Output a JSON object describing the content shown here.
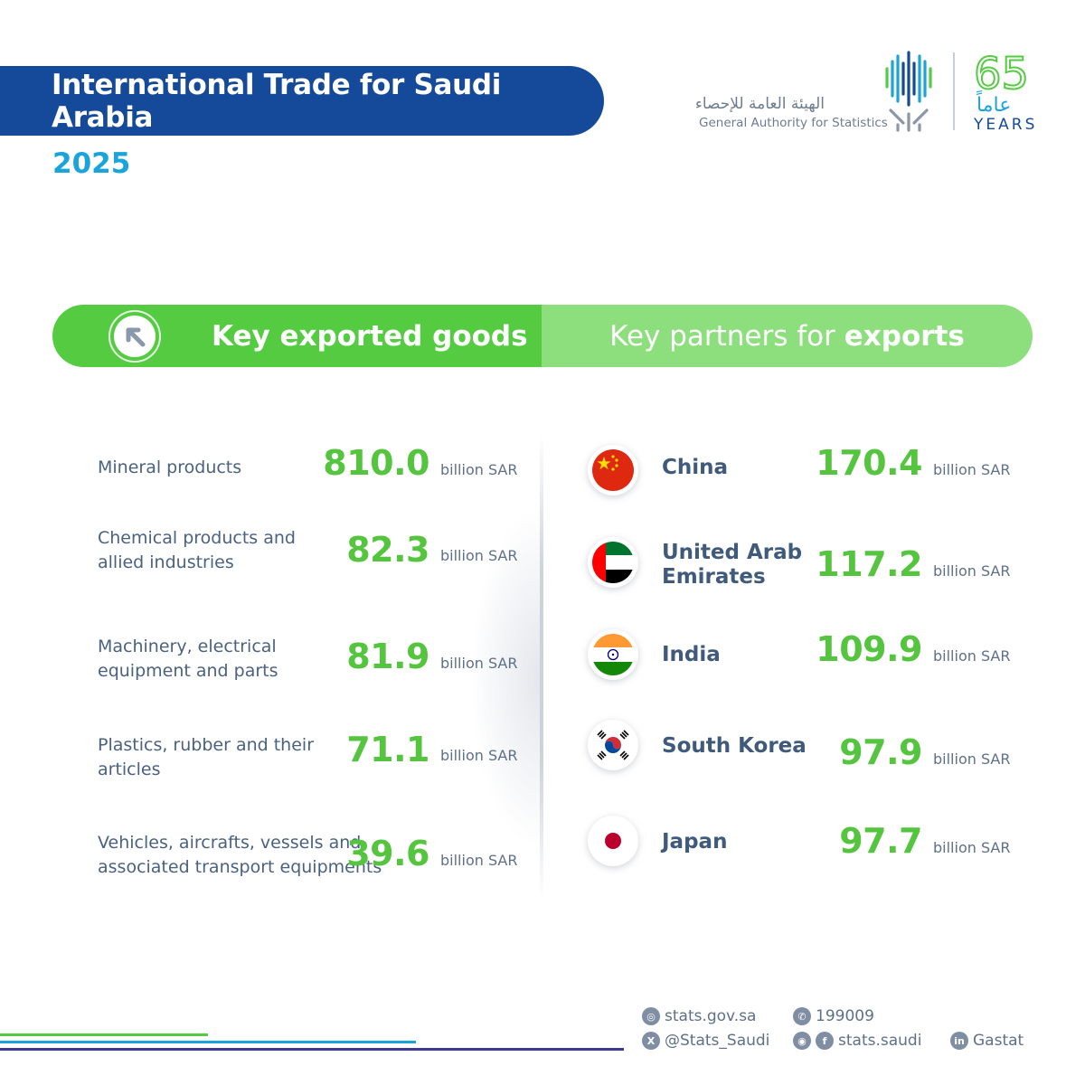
{
  "header": {
    "title": "International Trade for Saudi Arabia",
    "year": "2025"
  },
  "logo": {
    "arabic_name": "الهيئة العامة للإحصاء",
    "english_name": "General Authority for Statistics",
    "anniversary_number": "65",
    "anniversary_arabic": "عاماً",
    "anniversary_english": "YEARS",
    "colors": {
      "navy": "#154a9a",
      "cyan": "#1aa4dc",
      "green": "#55cb42"
    }
  },
  "band": {
    "left_label": "Key exported goods",
    "right_label_prefix": "Key partners for ",
    "right_label_bold": "exports",
    "arrow_icon": "arrow-up-left-icon"
  },
  "goods": [
    {
      "name_line1": "Mineral products",
      "name_line2": "",
      "value": "810.0",
      "unit": "billion SAR"
    },
    {
      "name_line1": "Chemical products and",
      "name_line2": "allied industries",
      "value": "82.3",
      "unit": "billion SAR"
    },
    {
      "name_line1": "Machinery, electrical",
      "name_line2": "equipment and parts",
      "value": "81.9",
      "unit": "billion SAR"
    },
    {
      "name_line1": "Plastics, rubber and their",
      "name_line2": "articles",
      "value": "71.1",
      "unit": "billion SAR"
    },
    {
      "name_line1": "Vehicles, aircrafts, vessels and",
      "name_line2": "associated transport equipments",
      "value": "39.6",
      "unit": "billion SAR"
    }
  ],
  "partners": [
    {
      "name_line1": "China",
      "name_line2": "",
      "value": "170.4",
      "unit": "billion SAR",
      "flag": "china-flag-icon"
    },
    {
      "name_line1": "United Arab",
      "name_line2": "Emirates",
      "value": "117.2",
      "unit": "billion SAR",
      "flag": "uae-flag-icon"
    },
    {
      "name_line1": "India",
      "name_line2": "",
      "value": "109.9",
      "unit": "billion SAR",
      "flag": "india-flag-icon"
    },
    {
      "name_line1": "South Korea",
      "name_line2": "",
      "value": "97.9",
      "unit": "billion SAR",
      "flag": "south-korea-flag-icon"
    },
    {
      "name_line1": "Japan",
      "name_line2": "",
      "value": "97.7",
      "unit": "billion SAR",
      "flag": "japan-flag-icon"
    }
  ],
  "footer": {
    "website": "stats.gov.sa",
    "phone": "199009",
    "twitter": "@Stats_Saudi",
    "social": "stats.saudi",
    "linkedin": "Gastat"
  }
}
